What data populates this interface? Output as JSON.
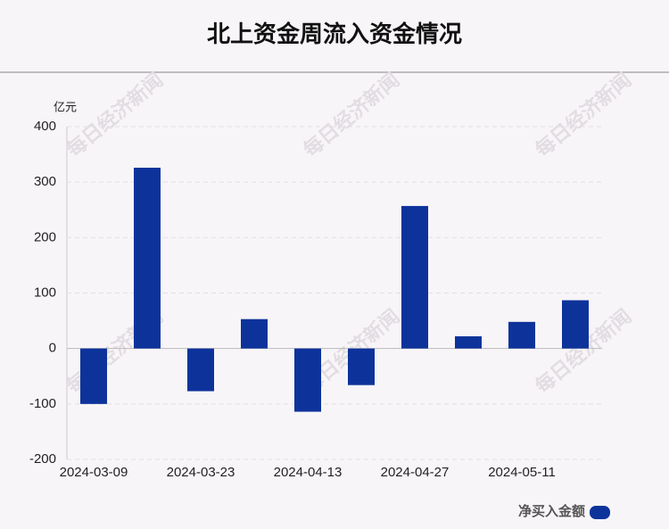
{
  "chart_data": {
    "type": "bar",
    "title": "北上资金周流入资金情况",
    "y_label": "亿元",
    "watermark": "每日经济新闻",
    "categories": [
      "2024-03-09",
      null,
      "2024-03-23",
      null,
      "2024-04-13",
      null,
      "2024-04-27",
      null,
      "2024-05-11",
      null
    ],
    "series": [
      {
        "name": "净买入金额",
        "color": "#0d339b",
        "values": [
          -100,
          326,
          -77,
          53,
          -114,
          -66,
          257,
          22,
          48,
          87
        ]
      }
    ],
    "ylim": [
      -200,
      400
    ],
    "yticks": [
      -200,
      -100,
      0,
      100,
      200,
      300,
      400
    ],
    "grid": true
  }
}
